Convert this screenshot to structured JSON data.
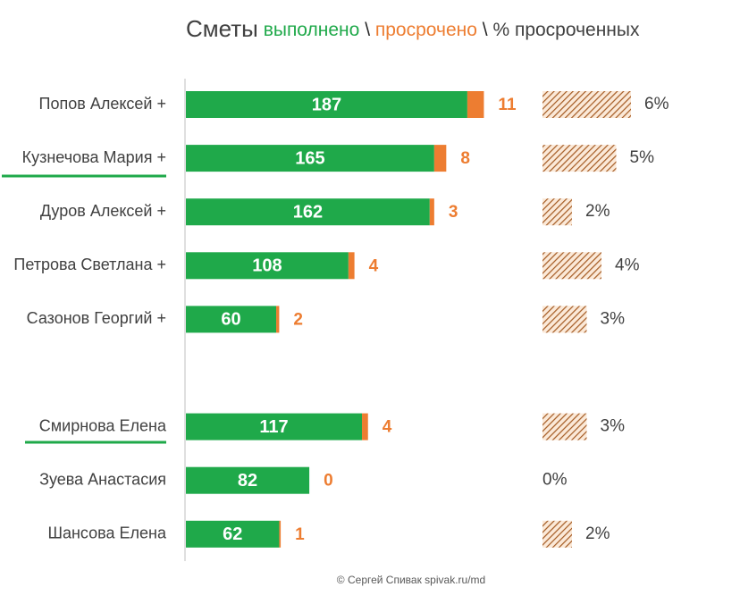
{
  "chart_data": {
    "type": "bar",
    "title_parts": [
      "Сметы",
      "выполнено",
      "\\",
      "просрочено",
      "\\",
      "% просроченных"
    ],
    "categories": [
      "Попов Алексей +",
      "Кузнечова Мария +",
      "Дуров Алексей +",
      "Петрова Светлана +",
      "Сазонов Георгий +",
      null,
      "Смирнова Елена",
      "Зуева Анастасия",
      "Шансова Елена"
    ],
    "series": [
      {
        "name": "выполнено",
        "color": "#1fa94a",
        "values": [
          187,
          165,
          162,
          108,
          60,
          null,
          117,
          82,
          62
        ]
      },
      {
        "name": "просрочено",
        "color": "#ed7d31",
        "values": [
          11,
          8,
          3,
          4,
          2,
          null,
          4,
          0,
          1
        ]
      },
      {
        "name": "% просроченных",
        "color": "#a45a22",
        "values": [
          6,
          5,
          2,
          4,
          3,
          null,
          3,
          0,
          2
        ],
        "value_labels": [
          "6%",
          "5%",
          "2%",
          "4%",
          "3%",
          null,
          "3%",
          "0%",
          "2%"
        ]
      }
    ],
    "footer": "© Сергей Спивак  spivak.ru/md"
  }
}
